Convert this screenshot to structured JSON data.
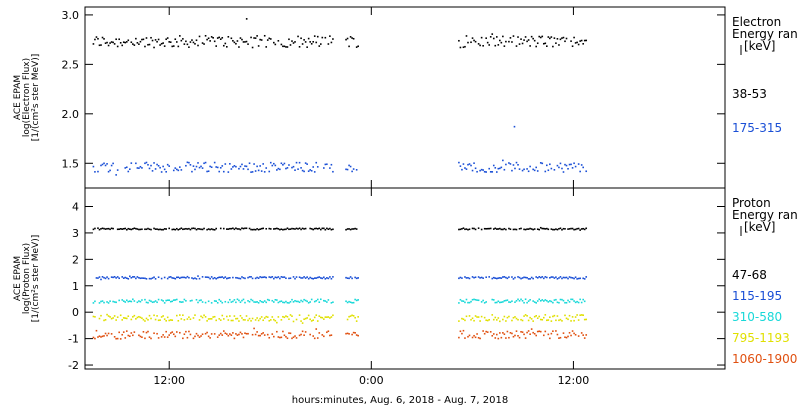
{
  "chart_data": [
    {
      "type": "scatter",
      "panel": "electron",
      "ylabel": [
        "ACE EPAM",
        "log(Electron Flux)",
        "[1/(cm²s ster MeV)]"
      ],
      "ylim": [
        1.25,
        3.08
      ],
      "yticks": [
        1.5,
        2.0,
        2.5,
        3.0
      ],
      "ytick_labels": [
        "1.5",
        "2.0",
        "2.5",
        "3.0"
      ],
      "legend_title": [
        "Electron",
        "Energy ran",
        "[keV]"
      ],
      "series": [
        {
          "name": "38-53",
          "color": "#000000",
          "mean": 2.73,
          "spread": 0.06
        },
        {
          "name": "175-315",
          "color": "#1a4fd6",
          "mean": 1.46,
          "spread": 0.05
        }
      ],
      "spikes": [
        {
          "series": 1,
          "x": 32.5,
          "y": 1.87
        },
        {
          "series": 0,
          "x": 16.6,
          "y": 2.96
        }
      ]
    },
    {
      "type": "scatter",
      "panel": "proton",
      "ylabel": [
        "ACE EPAM",
        "log(Proton Flux)",
        "[1/(cm²s ster MeV)]"
      ],
      "ylim": [
        -2.15,
        4.7
      ],
      "yticks": [
        -2,
        -1,
        0,
        1,
        2,
        3,
        4
      ],
      "ytick_labels": [
        "-2",
        "-1",
        "0",
        "1",
        "2",
        "3",
        "4"
      ],
      "legend_title": [
        "Proton",
        "Energy ran",
        "[keV]"
      ],
      "series": [
        {
          "name": "47-68",
          "color": "#000000",
          "mean": 3.15,
          "spread": 0.03
        },
        {
          "name": "115-195",
          "color": "#1a4fd6",
          "mean": 1.3,
          "spread": 0.04
        },
        {
          "name": "310-580",
          "color": "#18d8d8",
          "mean": 0.42,
          "spread": 0.07
        },
        {
          "name": "795-1193",
          "color": "#e0e000",
          "mean": -0.22,
          "spread": 0.12
        },
        {
          "name": "1060-1900",
          "color": "#e05010",
          "mean": -0.85,
          "spread": 0.15
        }
      ]
    }
  ],
  "x_axis": {
    "range_hours": [
      7,
      45
    ],
    "ticks": [
      12,
      24,
      36
    ],
    "tick_labels": [
      "12:00",
      "0:00",
      "12:00"
    ],
    "data_segments": [
      [
        7.5,
        21.8
      ],
      [
        22.5,
        23.3
      ],
      [
        29.2,
        36.8
      ]
    ],
    "label": "hours:minutes, Aug.  6, 2018 - Aug.  7, 2018"
  }
}
